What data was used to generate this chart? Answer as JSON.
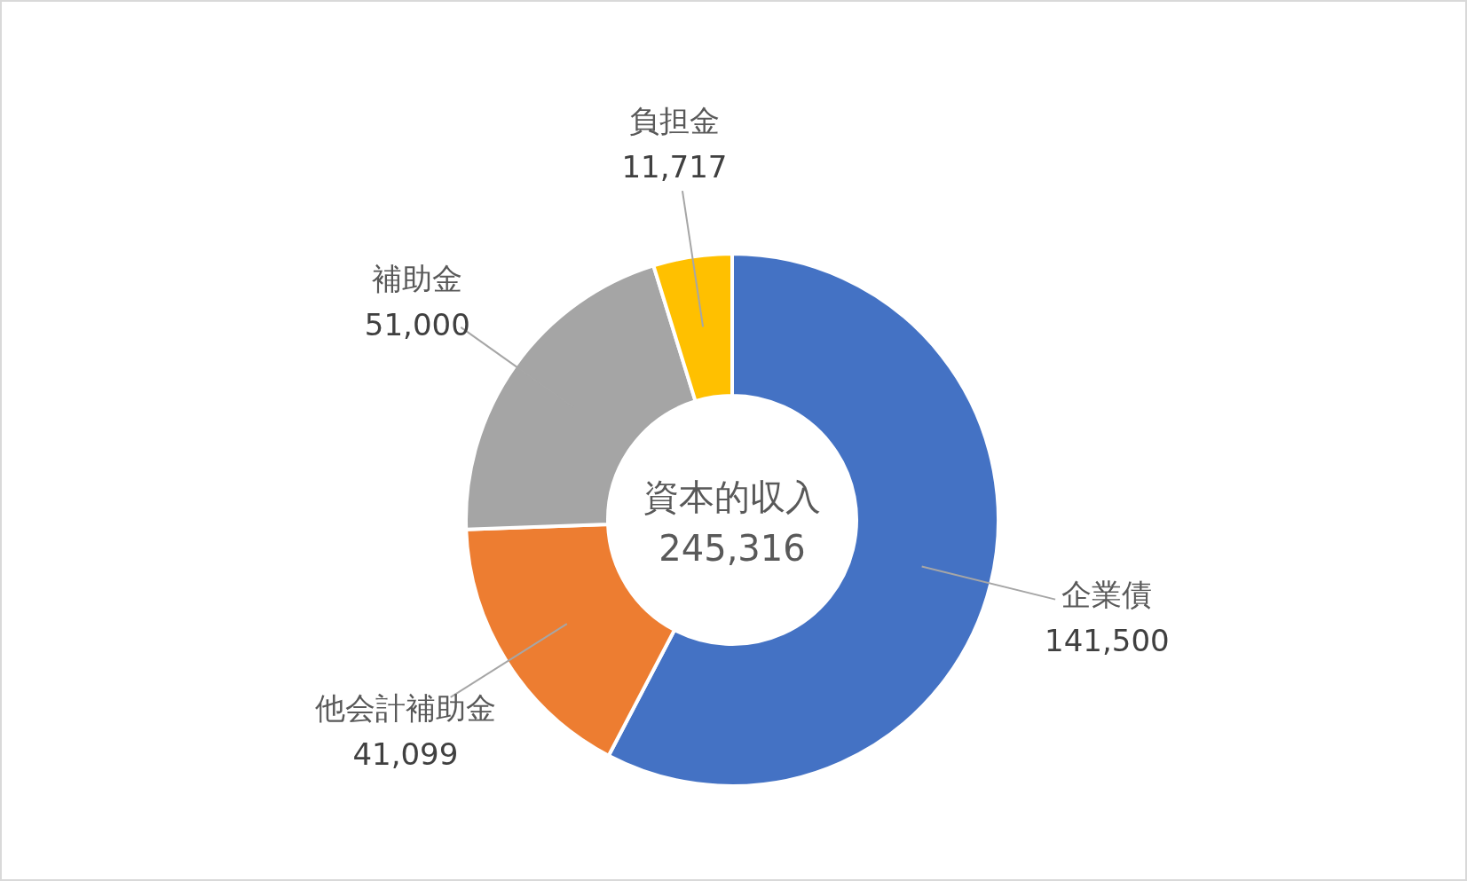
{
  "chart_data": {
    "type": "donut",
    "title": "資本的収入",
    "subtitle": "245,316",
    "categories": [
      "企業債",
      "他会計補助金",
      "補助金",
      "負担金"
    ],
    "values": [
      141500,
      41099,
      51000,
      11717
    ],
    "colors": [
      "#4472c4",
      "#ed7d31",
      "#a5a5a5",
      "#ffc000"
    ],
    "value_labels": [
      "141,500",
      "41,099",
      "51,000",
      "11,717"
    ]
  }
}
